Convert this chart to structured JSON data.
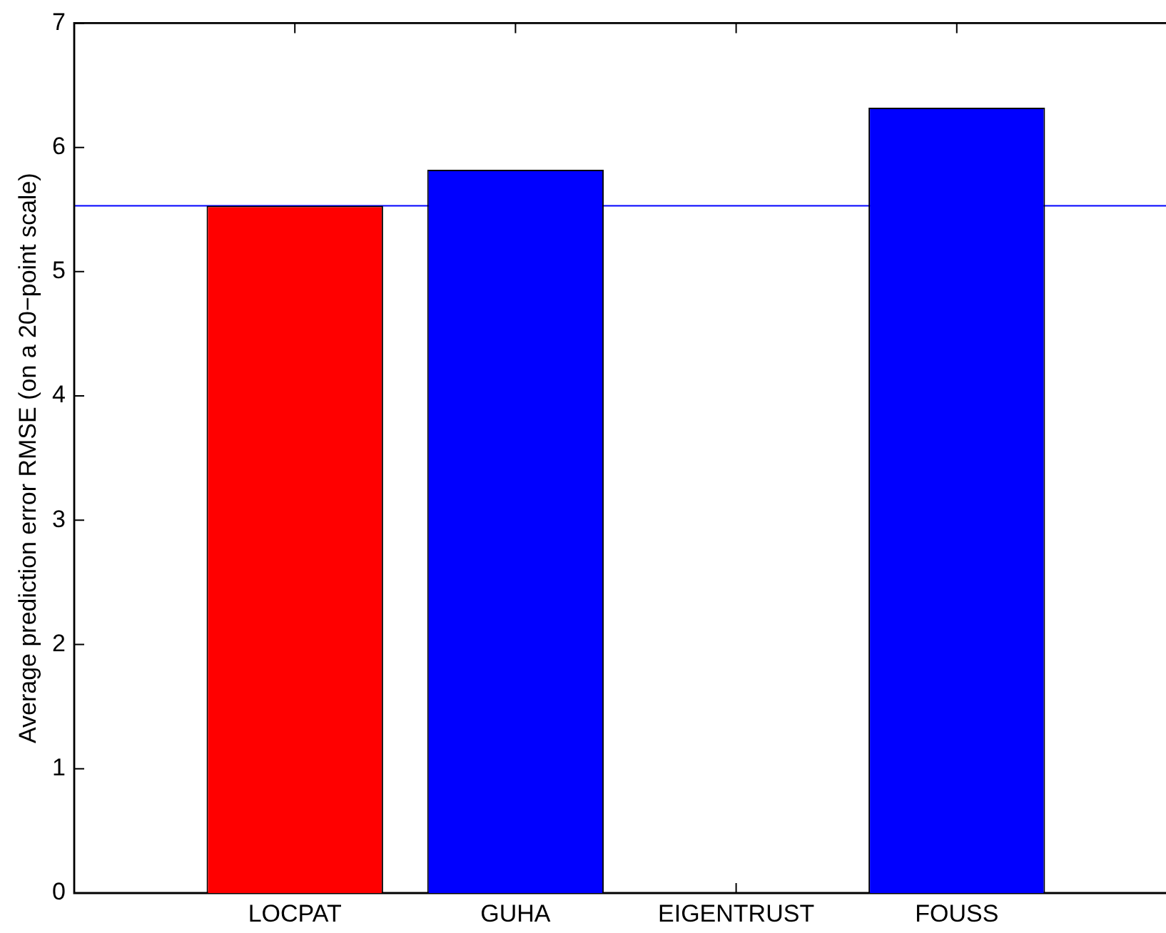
{
  "chart_data": {
    "type": "bar",
    "ylabel": "Average prediction error RMSE (on a 20−point scale)",
    "categories": [
      "LOCPAT",
      "GUHA",
      "EIGENTRUST",
      "FOUSS"
    ],
    "values": [
      5.53,
      5.82,
      0,
      6.32
    ],
    "colors": [
      "#ff0000",
      "#0000ff",
      "#0000ff",
      "#0000ff"
    ],
    "ylim": [
      0,
      7
    ],
    "yticks": [
      0,
      1,
      2,
      3,
      4,
      5,
      6,
      7
    ],
    "grid": false,
    "legend": false,
    "ref_lines": [
      {
        "axis": "y",
        "value": 5.53,
        "color": "#0000ff"
      }
    ]
  }
}
